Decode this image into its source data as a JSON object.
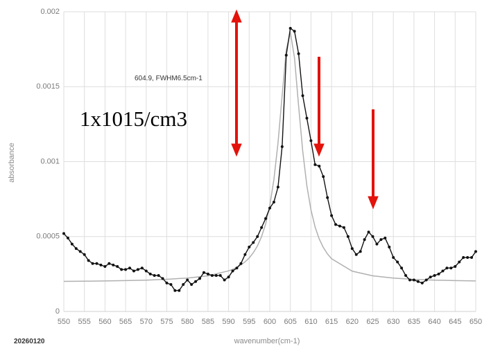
{
  "chart_data": {
    "type": "line",
    "annotation": "604.9, FWHM6.5cm-1",
    "concentration_label": "1x1015/cm3",
    "ylabel": "absorbance",
    "xlabel": "wavenumber(cm-1)",
    "date_label": "20260120",
    "xlim": [
      550,
      650
    ],
    "xticks": [
      550,
      555,
      560,
      565,
      570,
      575,
      580,
      585,
      590,
      595,
      600,
      605,
      610,
      615,
      620,
      625,
      630,
      635,
      640,
      645,
      650
    ],
    "ylim": [
      0,
      0.002
    ],
    "yticks": [
      0,
      0.0005,
      0.001,
      0.0015,
      0.002
    ],
    "grid": true,
    "series": [
      {
        "color": "#111111",
        "markers": true,
        "x": [
          550,
          551,
          552,
          553,
          554,
          555,
          556,
          557,
          558,
          559,
          560,
          561,
          562,
          563,
          564,
          565,
          566,
          567,
          568,
          569,
          570,
          571,
          572,
          573,
          574,
          575,
          576,
          577,
          578,
          579,
          580,
          581,
          582,
          583,
          584,
          585,
          586,
          587,
          588,
          589,
          590,
          591,
          592,
          593,
          594,
          595,
          596,
          597,
          598,
          599,
          600,
          601,
          602,
          603,
          604,
          605,
          606,
          607,
          608,
          609,
          610,
          611,
          612,
          613,
          614,
          615,
          616,
          617,
          618,
          619,
          620,
          621,
          622,
          623,
          624,
          625,
          626,
          627,
          628,
          629,
          630,
          631,
          632,
          633,
          634,
          635,
          636,
          637,
          638,
          639,
          640,
          641,
          642,
          643,
          644,
          645,
          646,
          647,
          648,
          649,
          650
        ],
        "values": [
          0.00052,
          0.00049,
          0.00045,
          0.00042,
          0.0004,
          0.00038,
          0.00034,
          0.00032,
          0.00032,
          0.00031,
          0.0003,
          0.00032,
          0.00031,
          0.0003,
          0.00028,
          0.00028,
          0.00029,
          0.00027,
          0.00028,
          0.00029,
          0.00027,
          0.00025,
          0.00024,
          0.00024,
          0.00022,
          0.00019,
          0.00018,
          0.00014,
          0.00014,
          0.00018,
          0.00021,
          0.00018,
          0.0002,
          0.00022,
          0.00026,
          0.00025,
          0.00024,
          0.00024,
          0.00024,
          0.00021,
          0.00023,
          0.00027,
          0.00029,
          0.00032,
          0.00038,
          0.00043,
          0.00046,
          0.0005,
          0.00056,
          0.00062,
          0.00069,
          0.00073,
          0.00083,
          0.0011,
          0.00171,
          0.00189,
          0.00187,
          0.00172,
          0.00144,
          0.00129,
          0.00114,
          0.00098,
          0.00097,
          0.0009,
          0.00076,
          0.00064,
          0.00058,
          0.00057,
          0.00056,
          0.0005,
          0.00042,
          0.00038,
          0.0004,
          0.00048,
          0.00053,
          0.0005,
          0.00045,
          0.00048,
          0.00049,
          0.00043,
          0.00036,
          0.00033,
          0.00029,
          0.00024,
          0.00021,
          0.00021,
          0.0002,
          0.00019,
          0.00021,
          0.00023,
          0.00024,
          0.00025,
          0.00027,
          0.00029,
          0.00029,
          0.0003,
          0.00033,
          0.00036,
          0.00036,
          0.00036,
          0.0004
        ]
      },
      {
        "color": "#b0b0b0",
        "markers": false,
        "x": [
          550,
          555,
          560,
          565,
          570,
          575,
          580,
          585,
          590,
          591,
          592,
          593,
          594,
          595,
          596,
          597,
          598,
          599,
          600,
          601,
          602,
          603,
          604,
          605,
          606,
          607,
          608,
          609,
          610,
          611,
          612,
          613,
          614,
          615,
          620,
          625,
          630,
          635,
          640,
          645,
          650
        ],
        "values": [
          0.000201,
          0.000202,
          0.000204,
          0.000206,
          0.000209,
          0.000215,
          0.000223,
          0.000238,
          0.000271,
          0.000281,
          0.000295,
          0.000311,
          0.000331,
          0.000357,
          0.000392,
          0.000437,
          0.000499,
          0.000584,
          0.000706,
          0.00088,
          0.001125,
          0.001439,
          0.001746,
          0.001863,
          0.001693,
          0.001372,
          0.00107,
          0.00084,
          0.000678,
          0.000564,
          0.000484,
          0.000427,
          0.000384,
          0.000352,
          0.000269,
          0.000238,
          0.000223,
          0.000214,
          0.000209,
          0.000206,
          0.000204
        ]
      }
    ]
  }
}
